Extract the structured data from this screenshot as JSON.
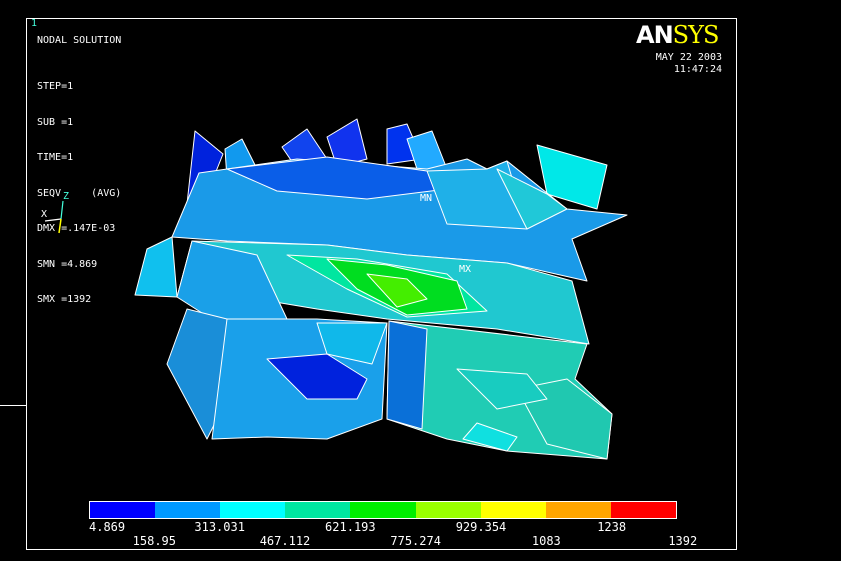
{
  "window_number": "1",
  "plot": {
    "title": "NODAL SOLUTION",
    "info": [
      "STEP=1",
      "SUB =1",
      "TIME=1",
      "SEQV     (AVG)",
      "DMX =.147E-03",
      "SMN =4.869",
      "SMX =1392"
    ],
    "date": "MAY 22 2003",
    "time": "11:47:24",
    "mn_label": "MN",
    "mx_label": "MX"
  },
  "logo": {
    "part1": "AN",
    "part2": "SYS"
  },
  "triad": {
    "x_label": "X",
    "z_label": "Z"
  },
  "legend": {
    "colors": [
      "#0000ff",
      "#0099ff",
      "#00ffff",
      "#00e6a0",
      "#00ee00",
      "#99ff00",
      "#ffff00",
      "#ffa500",
      "#ff0000"
    ],
    "top_labels": [
      "4.869",
      "313.031",
      "621.193",
      "929.354",
      "1238"
    ],
    "bottom_labels": [
      "158.95",
      "467.112",
      "775.274",
      "1083",
      "1392"
    ]
  }
}
